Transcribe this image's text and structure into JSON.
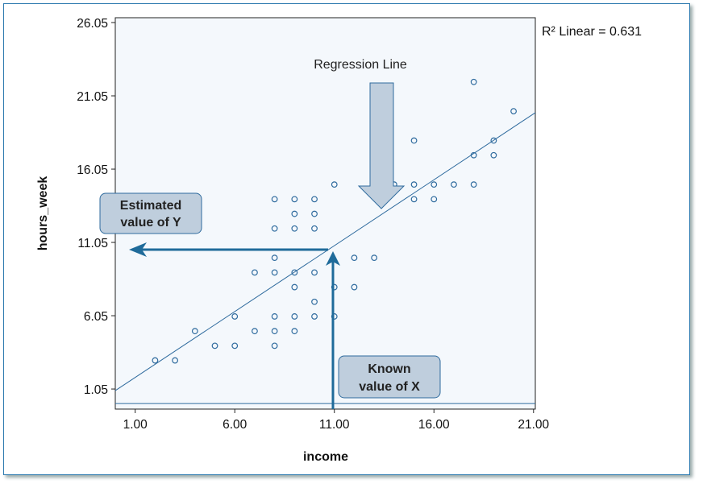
{
  "chart_data": {
    "type": "scatter",
    "xlabel": "income",
    "ylabel": "hours_week",
    "xlim": [
      0,
      21.09
    ],
    "ylim": [
      -0.32,
      26.38
    ],
    "xticks": [
      "1.00",
      "6.00",
      "11.00",
      "16.00",
      "21.00"
    ],
    "yticks": [
      "1.05",
      "6.05",
      "11.05",
      "16.05",
      "21.05",
      "26.05"
    ],
    "xtick_values": [
      1,
      6,
      11,
      16,
      21
    ],
    "ytick_values": [
      1.05,
      6.05,
      11.05,
      16.05,
      21.05,
      26.05
    ],
    "points": [
      [
        2,
        3
      ],
      [
        3,
        3
      ],
      [
        4,
        5
      ],
      [
        5,
        4
      ],
      [
        6,
        6
      ],
      [
        6,
        4
      ],
      [
        7,
        9
      ],
      [
        7,
        5
      ],
      [
        8,
        14
      ],
      [
        8,
        12
      ],
      [
        8,
        10
      ],
      [
        8,
        9
      ],
      [
        8,
        6
      ],
      [
        8,
        5
      ],
      [
        8,
        4
      ],
      [
        9,
        14
      ],
      [
        9,
        13
      ],
      [
        9,
        12
      ],
      [
        9,
        9
      ],
      [
        9,
        8
      ],
      [
        9,
        6
      ],
      [
        9,
        5
      ],
      [
        10,
        14
      ],
      [
        10,
        13
      ],
      [
        10,
        12
      ],
      [
        10,
        9
      ],
      [
        10,
        7
      ],
      [
        10,
        6
      ],
      [
        11,
        15
      ],
      [
        11,
        8
      ],
      [
        11,
        6
      ],
      [
        12,
        10
      ],
      [
        12,
        8
      ],
      [
        13,
        10
      ],
      [
        14,
        15
      ],
      [
        15,
        18
      ],
      [
        15,
        15
      ],
      [
        15,
        14
      ],
      [
        16,
        15
      ],
      [
        16,
        14
      ],
      [
        17,
        15
      ],
      [
        18,
        22
      ],
      [
        18,
        17
      ],
      [
        18,
        15
      ],
      [
        19,
        18
      ],
      [
        19,
        17
      ],
      [
        20,
        20
      ]
    ],
    "regression": {
      "intercept": 0.94,
      "slope": 0.899,
      "label": "R² Linear = 0.631"
    },
    "annotations": {
      "regression_line": "Regression Line",
      "estimated_y": [
        "Estimated",
        "value of Y"
      ],
      "known_x": [
        "Known",
        "value of X"
      ],
      "known_x_value": 11,
      "estimated_y_value": 10.83
    },
    "baseline_y": 0.06
  },
  "colors": {
    "marker": "#2f6b9e",
    "arrow": "#1f6b9a",
    "box": "#bfcedd",
    "plot_bg": "#f4f8fc"
  }
}
